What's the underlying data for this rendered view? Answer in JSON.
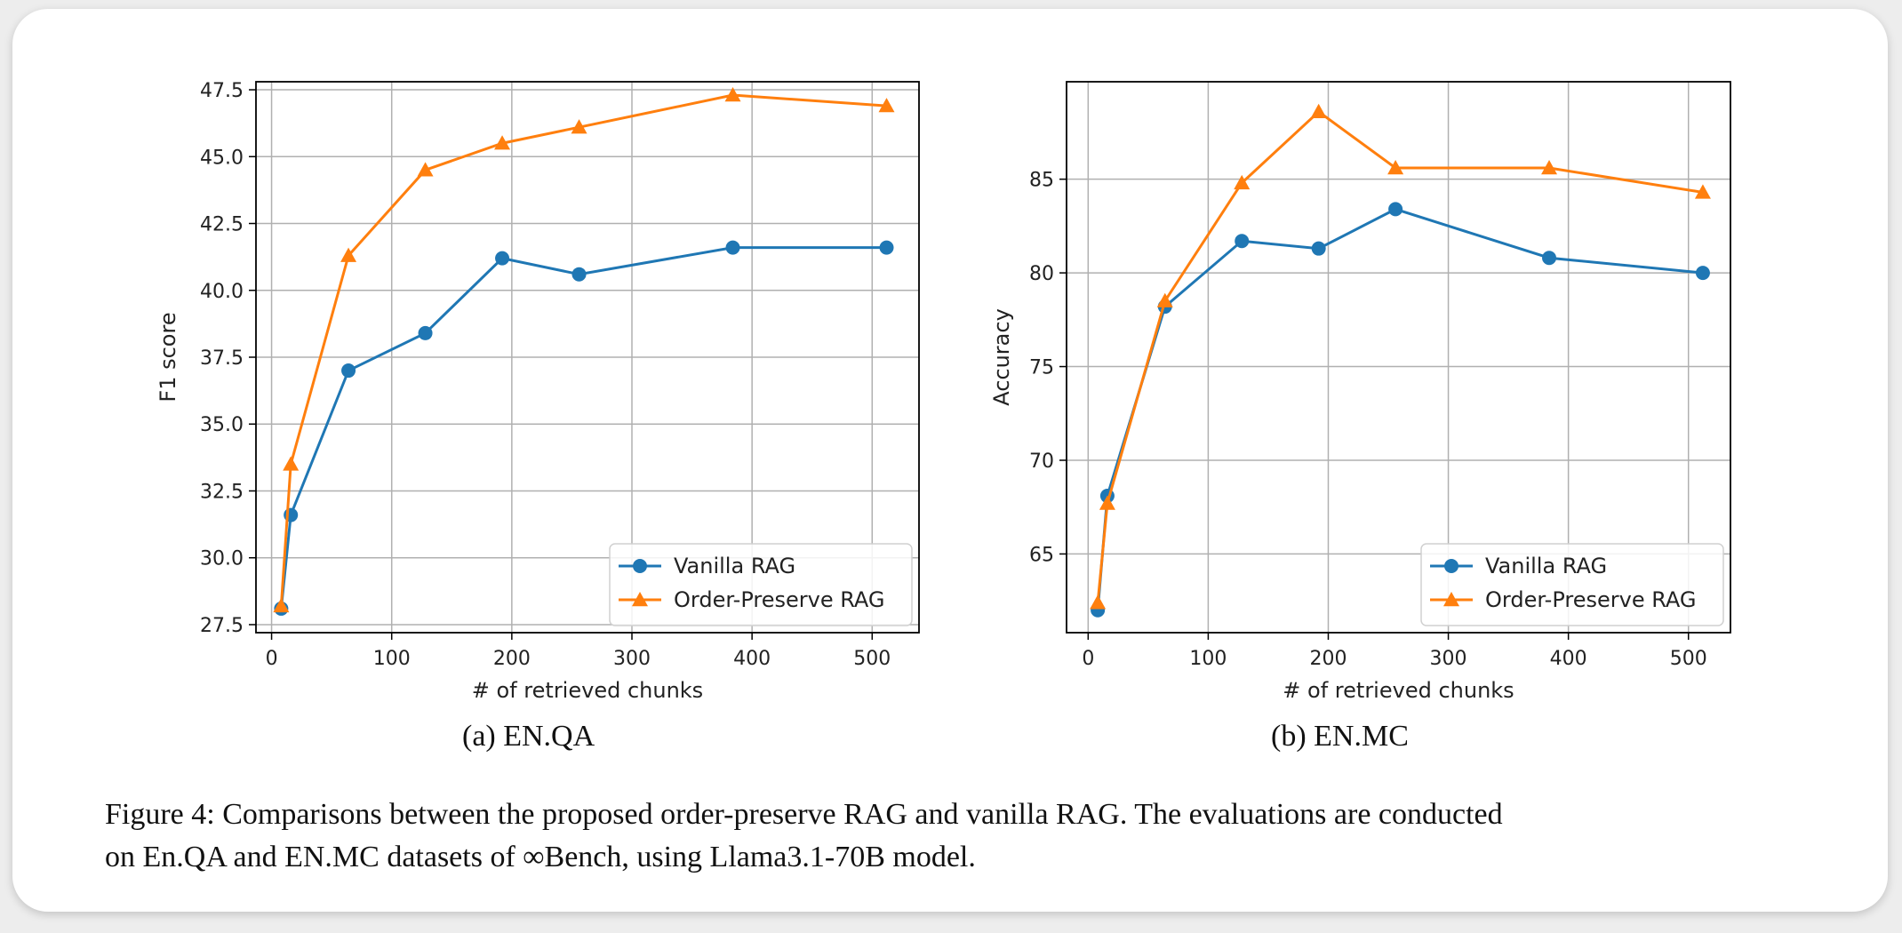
{
  "chart_data": [
    {
      "type": "line",
      "subcaption": "(a) EN.QA",
      "xlabel": "# of retrieved chunks",
      "ylabel": "F1 score",
      "xlim": [
        -13,
        539
      ],
      "ylim": [
        27.2,
        47.8
      ],
      "xticks": [
        0,
        100,
        200,
        300,
        400,
        500
      ],
      "yticks": [
        27.5,
        30.0,
        32.5,
        35.0,
        37.5,
        40.0,
        42.5,
        45.0,
        47.5
      ],
      "ytick_decimals": 1,
      "grid": true,
      "legend_position": "bottom-right",
      "x": [
        8,
        16,
        64,
        128,
        192,
        256,
        384,
        512
      ],
      "series": [
        {
          "name": "Vanilla RAG",
          "marker": "circle",
          "color": "#1f77b4",
          "values": [
            28.1,
            31.6,
            37.0,
            38.4,
            41.2,
            40.6,
            41.6,
            41.6
          ]
        },
        {
          "name": "Order-Preserve RAG",
          "marker": "triangle",
          "color": "#ff7f0e",
          "values": [
            28.2,
            33.5,
            41.3,
            44.5,
            45.5,
            46.1,
            47.3,
            46.9
          ]
        }
      ]
    },
    {
      "type": "line",
      "subcaption": "(b) EN.MC",
      "xlabel": "# of retrieved chunks",
      "ylabel": "Accuracy",
      "xlim": [
        -18,
        535
      ],
      "ylim": [
        60.8,
        90.2
      ],
      "xticks": [
        0,
        100,
        200,
        300,
        400,
        500
      ],
      "yticks": [
        65,
        70,
        75,
        80,
        85
      ],
      "ytick_decimals": 0,
      "grid": true,
      "legend_position": "bottom-right",
      "x": [
        8,
        16,
        64,
        128,
        192,
        256,
        384,
        512
      ],
      "series": [
        {
          "name": "Vanilla RAG",
          "marker": "circle",
          "color": "#1f77b4",
          "values": [
            62.0,
            68.1,
            78.2,
            81.7,
            81.3,
            83.4,
            80.8,
            80.0
          ]
        },
        {
          "name": "Order-Preserve RAG",
          "marker": "triangle",
          "color": "#ff7f0e",
          "values": [
            62.4,
            67.7,
            78.5,
            84.8,
            88.6,
            85.6,
            85.6,
            84.3
          ]
        }
      ]
    }
  ],
  "caption": {
    "line1": "Figure 4: Comparisons between the proposed order-preserve RAG and vanilla RAG. The evaluations are conducted",
    "line2": "on En.QA and EN.MC datasets of ∞Bench, using Llama3.1-70B model."
  }
}
